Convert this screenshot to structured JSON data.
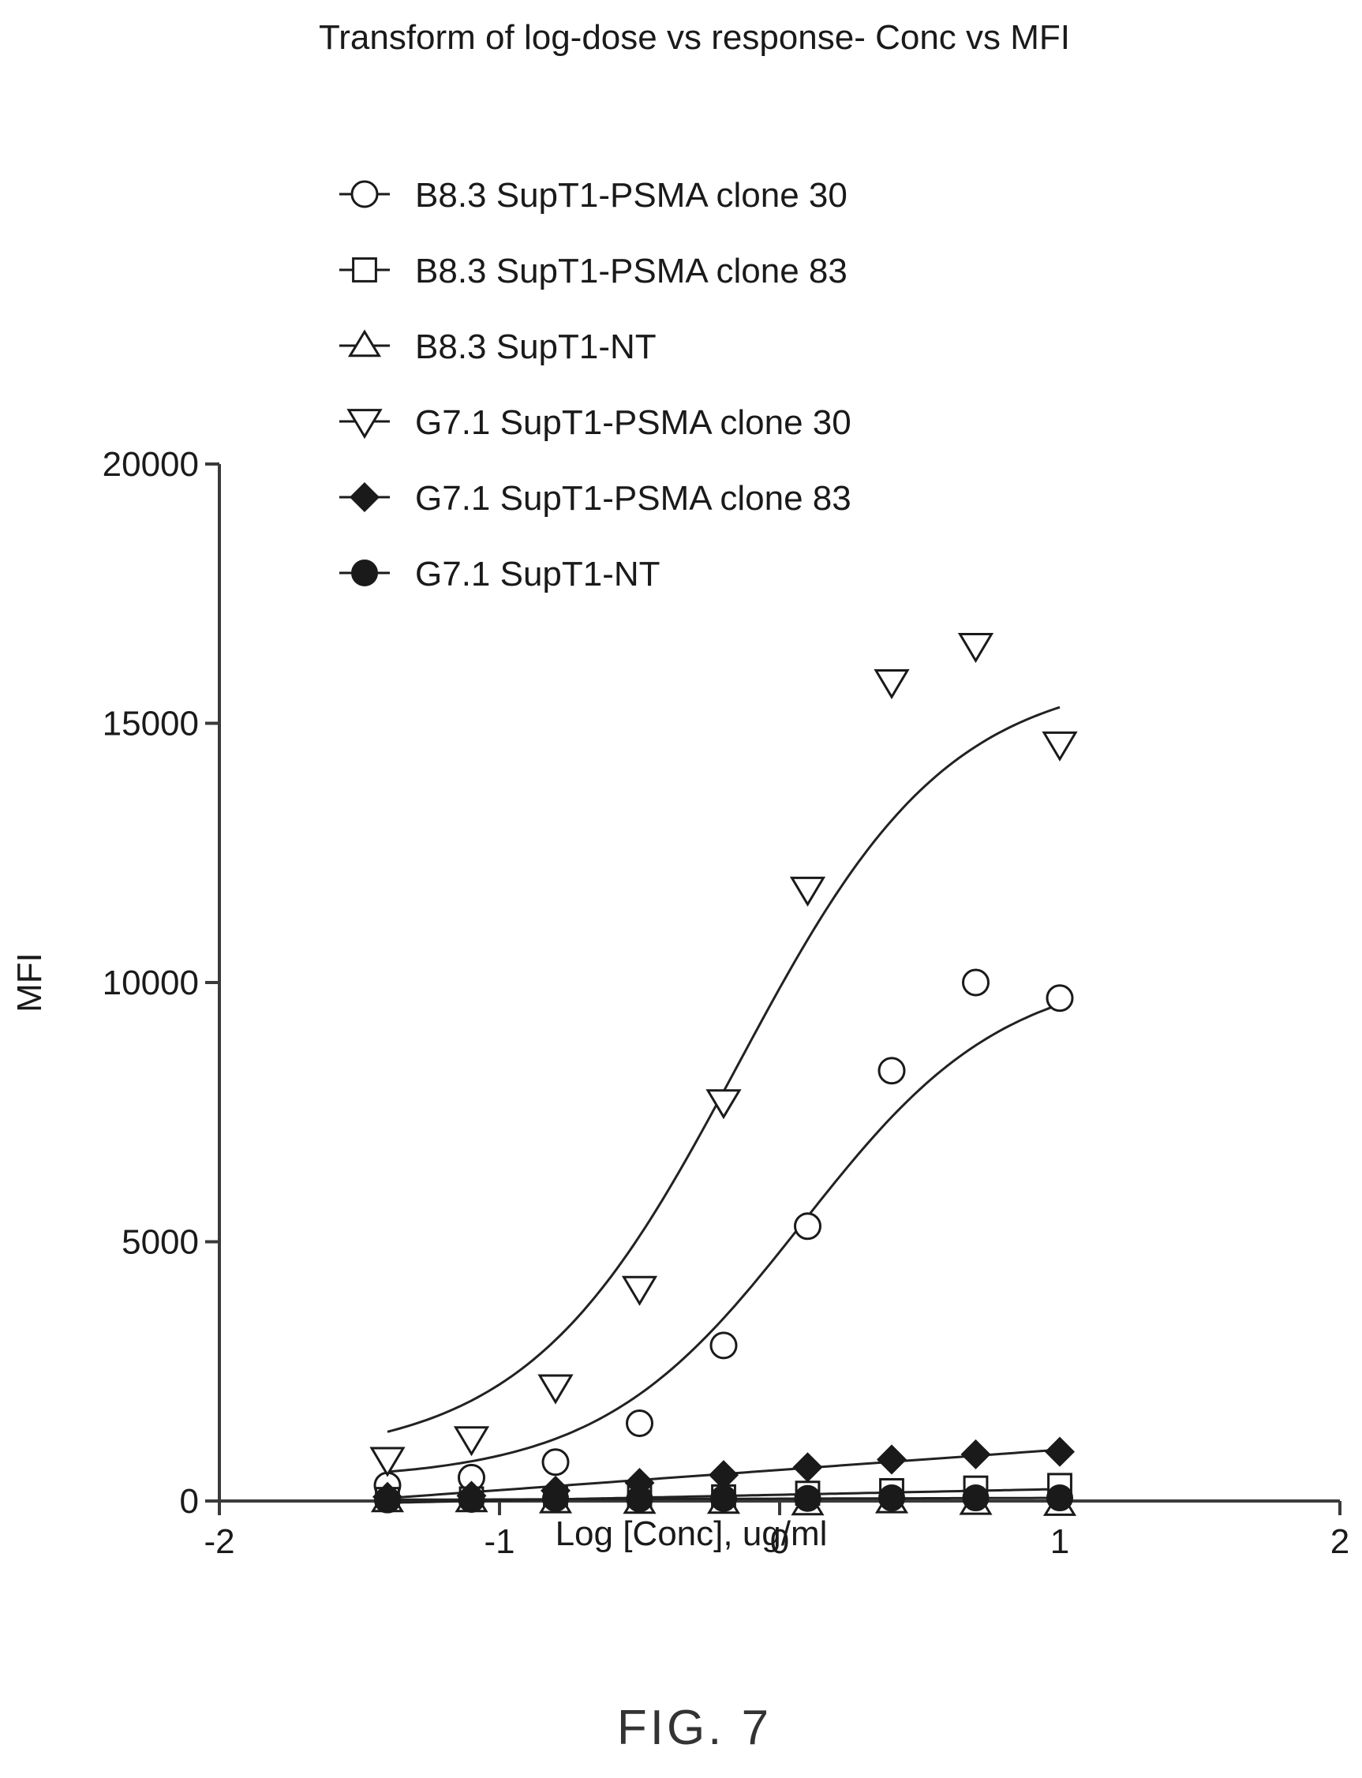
{
  "figure_label": "FIG. 7",
  "chart_data": {
    "type": "scatter",
    "title": "Transform of log-dose vs response- Conc vs MFI",
    "xlabel": "Log [Conc], ug/ml",
    "ylabel": "MFI",
    "xlim": [
      -2,
      2
    ],
    "ylim": [
      0,
      20000
    ],
    "xticks": [
      -2,
      -1,
      0,
      1,
      2
    ],
    "yticks": [
      0,
      5000,
      10000,
      15000,
      20000
    ],
    "xtick_labels": [
      "-2",
      "-1",
      "0",
      "1",
      "2"
    ],
    "ytick_labels": [
      "0",
      "5000",
      "10000",
      "15000",
      "20000"
    ],
    "grid": false,
    "legend_position": "top-center",
    "x": [
      -1.4,
      -1.1,
      -0.8,
      -0.5,
      -0.2,
      0.1,
      0.4,
      0.7,
      1.0
    ],
    "series": [
      {
        "name": "B8.3 SupT1-PSMA clone 30",
        "marker": "circle-open",
        "values": [
          300,
          450,
          750,
          1500,
          3000,
          5300,
          8300,
          10000,
          9700
        ],
        "fit": {
          "bottom": 400,
          "top": 10300,
          "logEC50": 0.08,
          "hill": 1.2
        }
      },
      {
        "name": "B8.3 SupT1-PSMA clone 83",
        "marker": "square-open",
        "values": [
          30,
          40,
          40,
          60,
          80,
          150,
          200,
          250,
          300
        ],
        "fit": {
          "slope": 110,
          "intercept": 120
        }
      },
      {
        "name": "B8.3 SupT1-NT",
        "marker": "triangle-up-open",
        "values": [
          0,
          0,
          -20,
          -30,
          -30,
          -60,
          -20,
          -50,
          -70
        ]
      },
      {
        "name": "G7.1 SupT1-PSMA clone 30",
        "marker": "triangle-down-open",
        "values": [
          800,
          1200,
          2200,
          4100,
          7700,
          11800,
          15800,
          16500,
          14600
        ],
        "fit": {
          "bottom": 800,
          "top": 16000,
          "logEC50": -0.15,
          "hill": 1.15
        }
      },
      {
        "name": "G7.1 SupT1-PSMA clone 83",
        "marker": "diamond-filled",
        "values": [
          80,
          100,
          200,
          350,
          500,
          650,
          800,
          900,
          950
        ],
        "fit": {
          "slope": 390,
          "intercept": 600
        }
      },
      {
        "name": "G7.1 SupT1-NT",
        "marker": "circle-filled",
        "values": [
          20,
          30,
          50,
          40,
          50,
          50,
          60,
          60,
          60
        ],
        "fit": {
          "slope": 15,
          "intercept": 45
        }
      }
    ]
  }
}
